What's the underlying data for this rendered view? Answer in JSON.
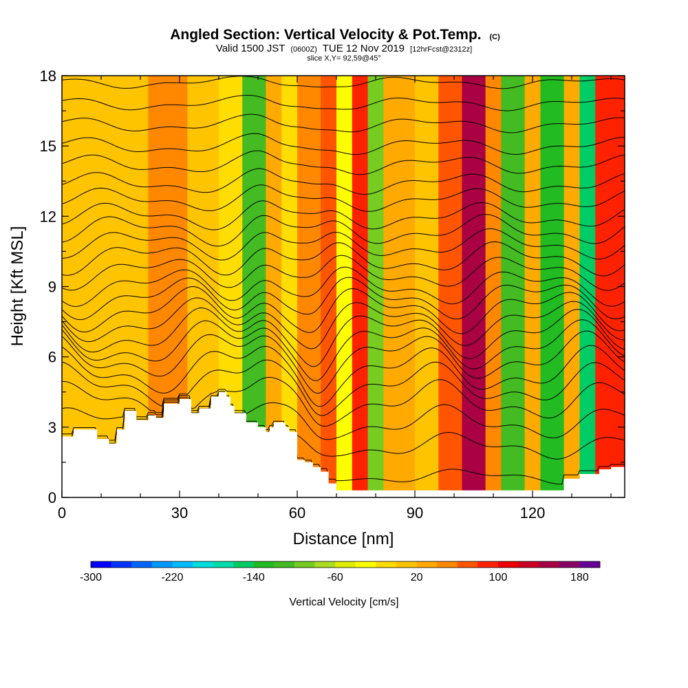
{
  "title": {
    "main": "Angled Section: Vertical Velocity & Pot.Temp.",
    "main_suffix": "(C)",
    "valid_prefix": "Valid 1500 JST",
    "valid_utc": "(0600Z)",
    "valid_date": "TUE 12 Nov 2019",
    "forecast": "[12hrFcst@2312z]",
    "slice": "slice X,Y= 92,59@45°"
  },
  "chart_data": {
    "type": "heatmap",
    "xlabel": "Distance [nm]",
    "ylabel": "Height [Kft MSL]",
    "x_ticks": [
      0,
      30,
      60,
      90,
      120
    ],
    "y_ticks": [
      0,
      3,
      6,
      9,
      12,
      15,
      18
    ],
    "xlim": [
      0,
      143.5
    ],
    "ylim": [
      0,
      18
    ],
    "colorbar": {
      "label": "Vertical Velocity [cm/s]",
      "tick_labels": [
        "-300",
        "-220",
        "-140",
        "-60",
        "20",
        "100",
        "180"
      ],
      "colors": [
        "#0000ff",
        "#0033ff",
        "#0066ff",
        "#0099ff",
        "#00bbff",
        "#00dddd",
        "#00ddaa",
        "#00cc66",
        "#22bb22",
        "#44bb22",
        "#77cc22",
        "#aadd22",
        "#ddee00",
        "#ffff00",
        "#ffdd00",
        "#ffc400",
        "#ffaa00",
        "#ff8800",
        "#ff5500",
        "#ff2200",
        "#ee0000",
        "#cc0022",
        "#aa0044",
        "#880066",
        "#660099"
      ]
    },
    "velocity_bands": [
      {
        "x": [
          0,
          8
        ],
        "value": 15
      },
      {
        "x": [
          8,
          22
        ],
        "value": 0
      },
      {
        "x": [
          22,
          32
        ],
        "value": 40
      },
      {
        "x": [
          32,
          40
        ],
        "value": 10
      },
      {
        "x": [
          40,
          46
        ],
        "value": -20
      },
      {
        "x": [
          46,
          52
        ],
        "value": -110
      },
      {
        "x": [
          52,
          56
        ],
        "value": 20
      },
      {
        "x": [
          56,
          60
        ],
        "value": -20
      },
      {
        "x": [
          60,
          66
        ],
        "value": 40
      },
      {
        "x": [
          66,
          70
        ],
        "value": 70
      },
      {
        "x": [
          70,
          74
        ],
        "value": -30
      },
      {
        "x": [
          74,
          78
        ],
        "value": 80
      },
      {
        "x": [
          78,
          82
        ],
        "value": -90
      },
      {
        "x": [
          82,
          90
        ],
        "value": 20
      },
      {
        "x": [
          90,
          96
        ],
        "value": 10
      },
      {
        "x": [
          96,
          102
        ],
        "value": 60
      },
      {
        "x": [
          102,
          108
        ],
        "value": 150
      },
      {
        "x": [
          108,
          112
        ],
        "value": 40
      },
      {
        "x": [
          112,
          118
        ],
        "value": -110
      },
      {
        "x": [
          118,
          122
        ],
        "value": 20
      },
      {
        "x": [
          122,
          128
        ],
        "value": -140
      },
      {
        "x": [
          128,
          132
        ],
        "value": 30
      },
      {
        "x": [
          132,
          136
        ],
        "value": -150
      },
      {
        "x": [
          136,
          143.5
        ],
        "value": 80
      }
    ],
    "terrain": {
      "x": [
        0,
        3,
        6,
        9,
        12,
        14,
        16,
        19,
        22,
        24,
        26,
        30,
        33,
        35,
        38,
        40,
        42,
        43,
        44,
        47,
        50,
        52,
        53,
        54,
        55,
        57,
        58,
        60,
        62,
        64,
        66,
        68,
        70,
        73,
        78,
        90,
        102,
        105,
        113,
        122,
        128,
        132,
        137,
        140,
        143.5
      ],
      "y": [
        2.6,
        2.9,
        2.9,
        2.5,
        2.3,
        2.9,
        3.7,
        3.3,
        3.5,
        3.4,
        4.0,
        4.2,
        3.6,
        3.8,
        4.3,
        4.5,
        4.3,
        3.9,
        3.6,
        3.2,
        3.0,
        2.8,
        3.0,
        3.2,
        3.2,
        3.0,
        2.8,
        1.6,
        1.5,
        1.3,
        1.1,
        0.6,
        0.3,
        0.3,
        0.3,
        0.3,
        0.3,
        0.3,
        0.3,
        0.3,
        0.8,
        1.0,
        1.2,
        1.3,
        1.3
      ]
    },
    "isentropes": [
      {
        "base": 0.9,
        "value": "",
        "amp": 0.4
      },
      {
        "base": 2.2,
        "value": "",
        "amp": 0.7
      },
      {
        "base": 3.2,
        "value": "",
        "amp": 0.9
      },
      {
        "base": 4.1,
        "value": "",
        "amp": 1.1
      },
      {
        "base": 4.8,
        "value": "",
        "amp": 1.2
      },
      {
        "base": 5.4,
        "value": "",
        "amp": 1.3
      },
      {
        "base": 6.0,
        "value": "",
        "amp": 1.3
      },
      {
        "base": 6.5,
        "value": "",
        "amp": 1.3
      },
      {
        "base": 7.0,
        "value": "",
        "amp": 1.3
      },
      {
        "base": 7.5,
        "value": "",
        "amp": 1.2
      },
      {
        "base": 8.0,
        "value": "",
        "amp": 1.2
      },
      {
        "base": 8.5,
        "value": "",
        "amp": 1.1
      },
      {
        "base": 9.0,
        "value": "",
        "amp": 1.0
      },
      {
        "base": 9.6,
        "value": "",
        "amp": 0.9
      },
      {
        "base": 10.2,
        "value": "",
        "amp": 0.9
      },
      {
        "base": 10.8,
        "value": "",
        "amp": 0.8
      },
      {
        "base": 11.4,
        "value": "",
        "amp": 0.8
      },
      {
        "base": 12.0,
        "value": "",
        "amp": 0.7
      },
      {
        "base": 12.7,
        "value": "",
        "amp": 0.6
      },
      {
        "base": 13.4,
        "value": "",
        "amp": 0.55
      },
      {
        "base": 14.2,
        "value": "",
        "amp": 0.5
      },
      {
        "base": 15.0,
        "value": "",
        "amp": 0.45
      },
      {
        "base": 15.9,
        "value": "",
        "amp": 0.4
      },
      {
        "base": 16.8,
        "value": "",
        "amp": 0.35
      },
      {
        "base": 17.7,
        "value": "",
        "amp": 0.3
      }
    ],
    "grid": false
  },
  "colors": {
    "background": "#ffffff",
    "contour": "#000000",
    "terrain": "#ffffff"
  }
}
